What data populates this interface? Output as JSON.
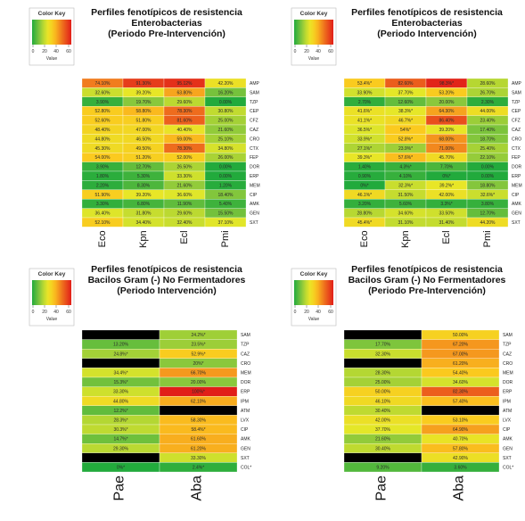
{
  "color_key": {
    "title": "Color Key",
    "ticks": [
      "0",
      "20",
      "40",
      "60"
    ],
    "axis_label": "Value"
  },
  "chart_data": [
    {
      "type": "heatmap",
      "title": [
        "Perfiles fenotípicos de resistencia",
        "Enterobacterias",
        "(Periodo Pre-Intervención)"
      ],
      "columns": [
        "Eco",
        "Kpn",
        "Ecl",
        "Pmi"
      ],
      "rows": [
        "AMP",
        "SAM",
        "TZP",
        "CEP",
        "CFZ",
        "CAZ",
        "CRO",
        "CTX",
        "FEP",
        "DOR",
        "ERP",
        "MEM",
        "CIP",
        "AMK",
        "GEN",
        "SXT"
      ],
      "cells": [
        [
          "74.10%",
          "91.30%",
          "95.12%",
          "42.20%"
        ],
        [
          "32.60%",
          "39.20%",
          "63.80%",
          "16.20%"
        ],
        [
          "3.90%",
          "19.70%",
          "29.60%",
          "0.00%"
        ],
        [
          "52.80%",
          "58.80%",
          "78.30%",
          "30.80%"
        ],
        [
          "52.60%",
          "51.80%",
          "81.60%",
          "25.00%"
        ],
        [
          "48.40%",
          "47.00%",
          "40.40%",
          "21.60%"
        ],
        [
          "44.80%",
          "46.50%",
          "59.00%",
          "25.10%"
        ],
        [
          "45.30%",
          "49.50%",
          "78.30%",
          "34.80%"
        ],
        [
          "54.00%",
          "51.20%",
          "52.00%",
          "26.00%"
        ],
        [
          "3.90%",
          "12.70%",
          "26.50%",
          "0.00%"
        ],
        [
          "1.80%",
          "5.30%",
          "33.30%",
          "0.00%"
        ],
        [
          "2.20%",
          "8.30%",
          "21.60%",
          "1.20%"
        ],
        [
          "51.90%",
          "39.20%",
          "36.60%",
          "18.40%"
        ],
        [
          "3.30%",
          "6.80%",
          "11.90%",
          "5.40%"
        ],
        [
          "36.40%",
          "31.80%",
          "29.60%",
          "15.50%"
        ],
        [
          "52.10%",
          "34.40%",
          "32.40%",
          "37.10%"
        ]
      ],
      "values": [
        [
          74.1,
          91.3,
          95.12,
          42.2
        ],
        [
          32.6,
          39.2,
          63.8,
          16.2
        ],
        [
          3.9,
          19.7,
          29.6,
          0.0
        ],
        [
          52.8,
          58.8,
          78.3,
          30.8
        ],
        [
          52.6,
          51.8,
          81.6,
          25.0
        ],
        [
          48.4,
          47.0,
          40.4,
          21.6
        ],
        [
          44.8,
          46.5,
          59.0,
          25.1
        ],
        [
          45.3,
          49.5,
          78.3,
          34.8
        ],
        [
          54.0,
          51.2,
          52.0,
          26.0
        ],
        [
          3.9,
          12.7,
          26.5,
          0.0
        ],
        [
          1.8,
          5.3,
          33.3,
          0.0
        ],
        [
          2.2,
          8.3,
          21.6,
          1.2
        ],
        [
          51.9,
          39.2,
          36.6,
          18.4
        ],
        [
          3.3,
          6.8,
          11.9,
          5.4
        ],
        [
          36.4,
          31.8,
          29.6,
          15.5
        ],
        [
          52.1,
          34.4,
          32.4,
          37.1
        ]
      ]
    },
    {
      "type": "heatmap",
      "title": [
        "Perfiles fenotípicos de resistencia",
        "Enterobacterias",
        "(Periodo Intervención)"
      ],
      "columns": [
        "Eco",
        "Kpn",
        "Ecl",
        "Pmi"
      ],
      "rows": [
        "AMP",
        "SAM",
        "TZP",
        "CEP",
        "CFZ",
        "CAZ",
        "CRO",
        "CTX",
        "FEP",
        "DOR",
        "ERP",
        "MEM",
        "CIP",
        "AMK",
        "GEN",
        "SXT"
      ],
      "cells": [
        [
          "53.4%*",
          "82.60%",
          "98.3%*",
          "28.60%"
        ],
        [
          "33.90%",
          "37.70%",
          "53.20%",
          "26.70%"
        ],
        [
          "2.70%",
          "12.60%",
          "20.00%",
          "2.30%"
        ],
        [
          "41.6%*",
          "38.3%*",
          "64.30%",
          "44.00%"
        ],
        [
          "41.1%*",
          "46.7%*",
          "86.40%",
          "23.40%"
        ],
        [
          "36.5%*",
          "54%*",
          "39.20%",
          "17.40%"
        ],
        [
          "33.9%*",
          "52.8%*",
          "68.00%",
          "18.70%"
        ],
        [
          "27.1%*",
          "23.9%*",
          "71.00%",
          "25.40%"
        ],
        [
          "39.3%*",
          "57.6%*",
          "45.70%",
          "22.10%"
        ],
        [
          "1.40%",
          "4.3%*",
          "7.70%",
          "0.00%"
        ],
        [
          "0.90%",
          "4.10%",
          "0%*",
          "0.00%"
        ],
        [
          "0%*",
          "32.3%*",
          "39.2%*",
          "18.80%"
        ],
        [
          "46.1%*",
          "31.50%",
          "42.00%",
          "32.6%*"
        ],
        [
          "3.20%",
          "5.60%",
          "3.3%*",
          "3.80%"
        ],
        [
          "28.80%",
          "34.60%",
          "33.50%",
          "12.70%"
        ],
        [
          "45.4%*",
          "31.10%",
          "31.40%",
          "44.20%"
        ]
      ],
      "values": [
        [
          53.4,
          82.6,
          98.3,
          28.6
        ],
        [
          33.9,
          37.7,
          53.2,
          26.7
        ],
        [
          2.7,
          12.6,
          20.0,
          2.3
        ],
        [
          41.6,
          38.3,
          64.3,
          44.0
        ],
        [
          41.1,
          46.7,
          86.4,
          23.4
        ],
        [
          36.5,
          54.0,
          39.2,
          17.4
        ],
        [
          33.9,
          52.8,
          68.0,
          18.7
        ],
        [
          27.1,
          23.9,
          71.0,
          25.4
        ],
        [
          39.3,
          57.6,
          45.7,
          22.1
        ],
        [
          1.4,
          4.3,
          7.7,
          0.0
        ],
        [
          0.9,
          4.1,
          0.0,
          0.0
        ],
        [
          0.0,
          32.3,
          39.2,
          18.8
        ],
        [
          46.1,
          31.5,
          42.0,
          32.6
        ],
        [
          3.2,
          5.6,
          3.3,
          3.8
        ],
        [
          28.8,
          34.6,
          33.5,
          12.7
        ],
        [
          45.4,
          31.1,
          31.4,
          44.2
        ]
      ]
    },
    {
      "type": "heatmap",
      "title": [
        "Perfiles fenotípicos de resistencia",
        "Bacilos Gram (-) No Fermentadores",
        "(Periodo Intervención)"
      ],
      "columns": [
        "Pae",
        "Aba"
      ],
      "rows": [
        "SAM",
        "TZP",
        "CAZ",
        "CRO",
        "MEM",
        "DOR",
        "ERP",
        "IPM",
        "ATM",
        "LVX",
        "CIP",
        "AMK",
        "GEN",
        "SXT",
        "COL*"
      ],
      "cells": [
        [
          "",
          "24.2%*"
        ],
        [
          "13.20%",
          "23.5%*"
        ],
        [
          "24.8%*",
          "52.9%*"
        ],
        [
          "",
          "20%*"
        ],
        [
          "34.4%*",
          "66.70%"
        ],
        [
          "15.3%*",
          "20.00%"
        ],
        [
          "33.30%",
          "100%*"
        ],
        [
          "44.80%",
          "62.10%"
        ],
        [
          "12.2%*",
          ""
        ],
        [
          "28.3%*",
          "58.30%"
        ],
        [
          "30.3%*",
          "58.4%*"
        ],
        [
          "14.7%*",
          "61.60%"
        ],
        [
          "29.30%",
          "61.20%"
        ],
        [
          "",
          "33.30%"
        ],
        [
          "0%*",
          "2.4%*"
        ]
      ],
      "values": [
        [
          null,
          24.2
        ],
        [
          13.2,
          23.5
        ],
        [
          24.8,
          52.9
        ],
        [
          null,
          20.0
        ],
        [
          34.4,
          66.7
        ],
        [
          15.3,
          20.0
        ],
        [
          33.3,
          100.0
        ],
        [
          44.8,
          62.1
        ],
        [
          12.2,
          null
        ],
        [
          28.3,
          58.3
        ],
        [
          30.3,
          58.4
        ],
        [
          14.7,
          61.6
        ],
        [
          29.3,
          61.2
        ],
        [
          null,
          33.3
        ],
        [
          0.0,
          2.4
        ]
      ]
    },
    {
      "type": "heatmap",
      "title": [
        "Perfiles fenotípicos de resistencia",
        "Bacilos Gram (-) No Fermentadores",
        "(Periodo Pre-Intervención)"
      ],
      "columns": [
        "Pae",
        "Aba"
      ],
      "rows": [
        "SAM",
        "TZP",
        "CAZ",
        "CRO",
        "MEM",
        "DOR",
        "ERP",
        "IPM",
        "ATM",
        "LVX",
        "CIP",
        "AMK",
        "GEN",
        "SXT",
        "COL*"
      ],
      "cells": [
        [
          "",
          "50.00%"
        ],
        [
          "17.70%",
          "67.20%"
        ],
        [
          "32.30%",
          "67.00%"
        ],
        [
          "",
          "61.20%"
        ],
        [
          "28.30%",
          "54.40%"
        ],
        [
          "25.00%",
          "34.60%"
        ],
        [
          "50.00%",
          "82.30%"
        ],
        [
          "46.10%",
          "57.40%"
        ],
        [
          "30.40%",
          ""
        ],
        [
          "42.00%",
          "53.10%"
        ],
        [
          "37.70%",
          "64.90%"
        ],
        [
          "21.60%",
          "40.70%"
        ],
        [
          "30.40%",
          "57.80%"
        ],
        [
          "",
          "42.90%"
        ],
        [
          "9.20%",
          "3.60%"
        ]
      ],
      "values": [
        [
          null,
          50.0
        ],
        [
          17.7,
          67.2
        ],
        [
          32.3,
          67.0
        ],
        [
          null,
          61.2
        ],
        [
          28.3,
          54.4
        ],
        [
          25.0,
          34.6
        ],
        [
          50.0,
          82.3
        ],
        [
          46.1,
          57.4
        ],
        [
          30.4,
          null
        ],
        [
          42.0,
          53.1
        ],
        [
          37.7,
          64.9
        ],
        [
          21.6,
          40.7
        ],
        [
          30.4,
          57.8
        ],
        [
          null,
          42.9
        ],
        [
          9.2,
          3.6
        ]
      ]
    }
  ]
}
